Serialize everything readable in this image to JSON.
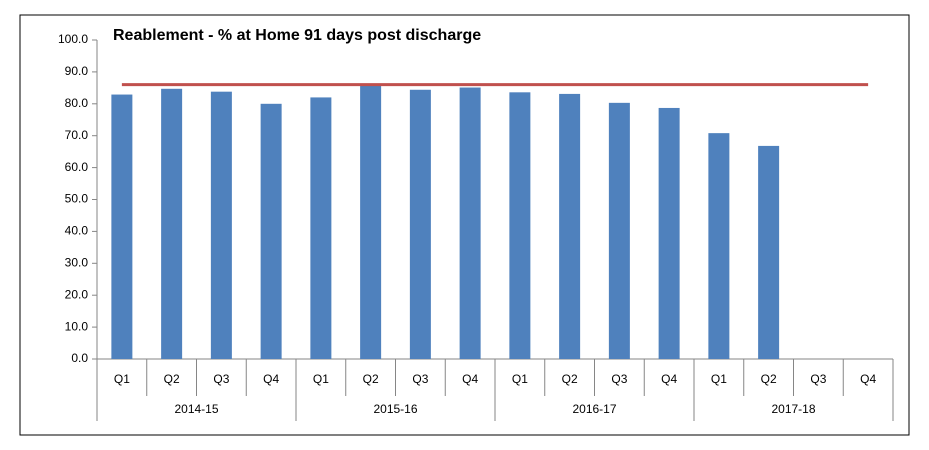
{
  "chart_data": {
    "type": "bar",
    "title": "Reablement - % at Home 91 days post discharge",
    "categories": [
      "Q1",
      "Q2",
      "Q3",
      "Q4",
      "Q1",
      "Q2",
      "Q3",
      "Q4",
      "Q1",
      "Q2",
      "Q3",
      "Q4",
      "Q1",
      "Q2",
      "Q3",
      "Q4"
    ],
    "category_groups": [
      "2014-15",
      "2015-16",
      "2016-17",
      "2017-18"
    ],
    "series": [
      {
        "type": "bar",
        "color": "#4f81bd",
        "values": [
          82.9,
          84.7,
          83.8,
          80.0,
          82.0,
          86.0,
          84.4,
          85.1,
          83.6,
          83.1,
          80.3,
          78.7,
          70.8,
          66.8,
          null,
          null
        ]
      },
      {
        "type": "line",
        "color": "#c0504d",
        "values": [
          86.0,
          86.0,
          86.0,
          86.0,
          86.0,
          86.0,
          86.0,
          86.0,
          86.0,
          86.0,
          86.0,
          86.0,
          86.0,
          86.0,
          86.0,
          86.0
        ]
      }
    ],
    "ylim": [
      0,
      100
    ],
    "yticks": [
      {
        "value": 0,
        "label": "0.0"
      },
      {
        "value": 10,
        "label": "10.0"
      },
      {
        "value": 20,
        "label": "20.0"
      },
      {
        "value": 30,
        "label": "30.0"
      },
      {
        "value": 40,
        "label": "40.0"
      },
      {
        "value": 50,
        "label": "50.0"
      },
      {
        "value": 60,
        "label": "60.0"
      },
      {
        "value": 70,
        "label": "70.0"
      },
      {
        "value": 80,
        "label": "80.0"
      },
      {
        "value": 90,
        "label": "90.0"
      },
      {
        "value": 100,
        "label": "100.0"
      }
    ],
    "grid": false
  }
}
